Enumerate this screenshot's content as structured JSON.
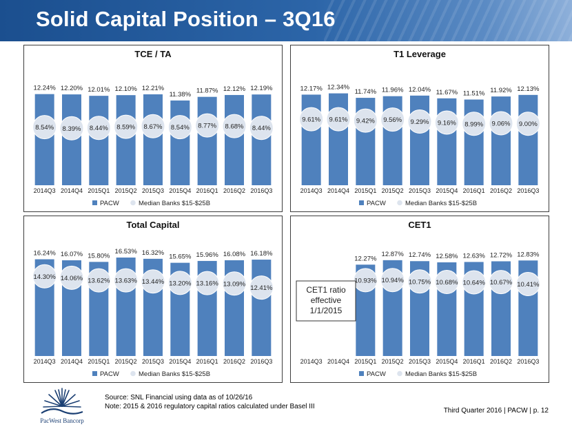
{
  "page": {
    "title": "Solid Capital Position – 3Q16",
    "source_line1": "Source: SNL Financial using data as of 10/26/16",
    "source_line2": "Note: 2015 & 2016 regulatory capital ratios calculated under Basel III",
    "footer": "Third Quarter 2016 | PACW | p. 12",
    "logo_text": "PacWest Bancorp"
  },
  "colors": {
    "header": "#2c65a8",
    "bar": "#4f81bd",
    "median_bubble": "#dde4ee",
    "text": "#222222"
  },
  "chart_data": [
    {
      "type": "bar",
      "title": "TCE / TA",
      "categories": [
        "2014Q3",
        "2014Q4",
        "2015Q1",
        "2015Q2",
        "2015Q3",
        "2015Q4",
        "2016Q1",
        "2016Q2",
        "2016Q3"
      ],
      "series": [
        {
          "name": "PACW",
          "values": [
            12.24,
            12.2,
            12.01,
            12.1,
            12.21,
            11.38,
            11.87,
            12.12,
            12.19
          ],
          "labels": [
            "12.24%",
            "12.20%",
            "12.01%",
            "12.10%",
            "12.21%",
            "11.38%",
            "11.87%",
            "12.12%",
            "12.19%"
          ]
        },
        {
          "name": "Median Banks $15-$25B",
          "values": [
            8.54,
            8.39,
            8.44,
            8.59,
            8.67,
            8.54,
            8.77,
            8.68,
            8.44
          ],
          "labels": [
            "8.54%",
            "8.39%",
            "8.44%",
            "8.59%",
            "8.67%",
            "8.54%",
            "8.77%",
            "8.68%",
            "8.44%"
          ]
        }
      ],
      "ylim": [
        0,
        16
      ],
      "legend": "bottom"
    },
    {
      "type": "bar",
      "title": "T1 Leverage",
      "categories": [
        "2014Q3",
        "2014Q4",
        "2015Q1",
        "2015Q2",
        "2015Q3",
        "2015Q4",
        "2016Q1",
        "2016Q2",
        "2016Q3"
      ],
      "series": [
        {
          "name": "PACW",
          "values": [
            12.17,
            12.34,
            11.74,
            11.96,
            12.04,
            11.67,
            11.51,
            11.92,
            12.13
          ],
          "labels": [
            "12.17%",
            "12.34%",
            "11.74%",
            "11.96%",
            "12.04%",
            "11.67%",
            "11.51%",
            "11.92%",
            "12.13%"
          ]
        },
        {
          "name": "Median Banks $15-$25B",
          "values": [
            9.61,
            9.61,
            9.42,
            9.56,
            9.29,
            9.16,
            8.99,
            9.06,
            9.0
          ],
          "labels": [
            "9.61%",
            "9.61%",
            "9.42%",
            "9.56%",
            "9.29%",
            "9.16%",
            "8.99%",
            "9.06%",
            "9.00%"
          ]
        }
      ],
      "ylim": [
        0,
        16
      ],
      "legend": "bottom"
    },
    {
      "type": "bar",
      "title": "Total Capital",
      "categories": [
        "2014Q3",
        "2014Q4",
        "2015Q1",
        "2015Q2",
        "2015Q3",
        "2015Q4",
        "2016Q1",
        "2016Q2",
        "2016Q3"
      ],
      "series": [
        {
          "name": "PACW",
          "values": [
            16.24,
            16.07,
            15.8,
            16.53,
            16.32,
            15.65,
            15.96,
            16.08,
            16.18
          ],
          "labels": [
            "16.24%",
            "16.07%",
            "15.80%",
            "16.53%",
            "16.32%",
            "15.65%",
            "15.96%",
            "16.08%",
            "16.18%"
          ]
        },
        {
          "name": "Median Banks $15-$25B",
          "values": [
            14.3,
            14.06,
            13.62,
            13.63,
            13.44,
            13.2,
            13.16,
            13.09,
            12.41
          ],
          "labels": [
            "14.30%",
            "14.06%",
            "13.62%",
            "13.63%",
            "13.44%",
            "13.20%",
            "13.16%",
            "13.09%",
            "12.41%"
          ]
        }
      ],
      "ylim": [
        0,
        20
      ],
      "legend": "bottom"
    },
    {
      "type": "bar",
      "title": "CET1",
      "categories": [
        "2014Q3",
        "2014Q4",
        "2015Q1",
        "2015Q2",
        "2015Q3",
        "2015Q4",
        "2016Q1",
        "2016Q2",
        "2016Q3"
      ],
      "series": [
        {
          "name": "PACW",
          "values": [
            null,
            null,
            12.27,
            12.87,
            12.74,
            12.58,
            12.63,
            12.72,
            12.83
          ],
          "labels": [
            "",
            "",
            "12.27%",
            "12.87%",
            "12.74%",
            "12.58%",
            "12.63%",
            "12.72%",
            "12.83%"
          ]
        },
        {
          "name": "Median Banks $15-$25B",
          "values": [
            null,
            null,
            10.93,
            10.94,
            10.75,
            10.68,
            10.64,
            10.67,
            10.41
          ],
          "labels": [
            "",
            "",
            "10.93%",
            "10.94%",
            "10.75%",
            "10.68%",
            "10.64%",
            "10.67%",
            "10.41%"
          ]
        }
      ],
      "ylim": [
        0,
        16
      ],
      "legend": "bottom",
      "annotation": "CET1 ratio effective 1/1/2015"
    }
  ]
}
